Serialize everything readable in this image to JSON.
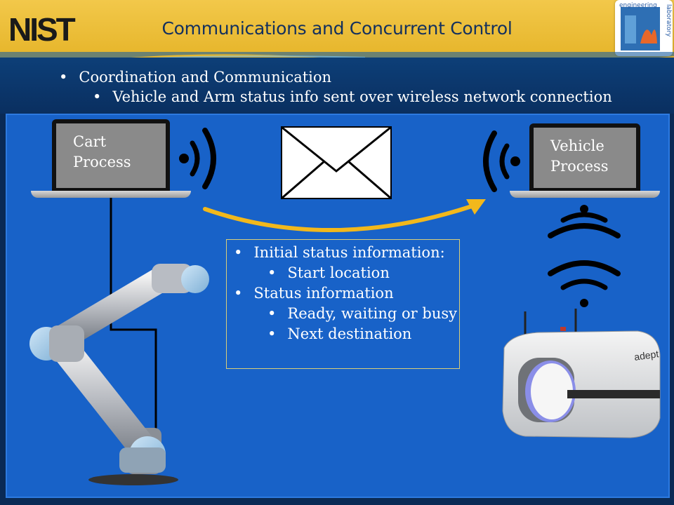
{
  "header": {
    "logo_text": "NIST",
    "title": "Communications and Concurrent Control",
    "corner_logo": {
      "lines": [
        "engineering",
        "laboratory"
      ]
    }
  },
  "bullets": {
    "level1": "Coordination and Communication",
    "level2": "Vehicle and Arm status info sent over wireless network connection"
  },
  "cart_laptop": {
    "line1": "Cart",
    "line2": "Process"
  },
  "vehicle_laptop": {
    "line1": "Vehicle",
    "line2": "Process"
  },
  "info_box": {
    "items": [
      {
        "text": "Initial status information:",
        "level": 1
      },
      {
        "text": "Start location",
        "level": 2
      },
      {
        "text": "Status information",
        "level": 1
      },
      {
        "text": "Ready, waiting or busy",
        "level": 2
      },
      {
        "text": "Next destination",
        "level": 2
      }
    ]
  },
  "robot": {
    "brand": "adept"
  },
  "colors": {
    "header": "#e6b52a",
    "panel": "#1862c8",
    "arrow": "#f2b81c",
    "title": "#13305e"
  },
  "icons": [
    "wifi-signal-icon",
    "envelope-icon",
    "arrow-icon",
    "robot-arm",
    "mobile-robot"
  ]
}
